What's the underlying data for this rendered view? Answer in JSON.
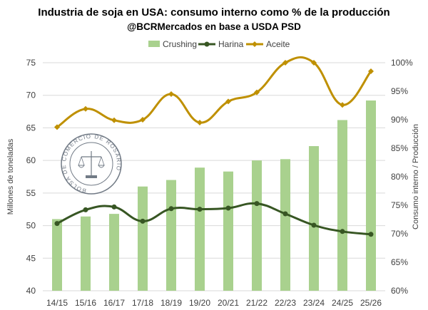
{
  "chart_data": {
    "type": "bar",
    "title": "Industria de soja en USA: consumo interno como % de la producción",
    "subtitle": "@BCRMercados en base a USDA PSD",
    "categories": [
      "14/15",
      "15/16",
      "16/17",
      "17/18",
      "18/19",
      "19/20",
      "20/21",
      "21/22",
      "22/23",
      "23/24",
      "24/25",
      "25/26"
    ],
    "series": [
      {
        "name": "Crushing",
        "type": "bar",
        "axis": "left",
        "color": "#a9d18e",
        "values": [
          51.0,
          51.4,
          51.8,
          56.0,
          57.0,
          58.9,
          58.3,
          60.0,
          60.2,
          62.2,
          66.2,
          69.2
        ]
      },
      {
        "name": "Harina",
        "type": "line",
        "axis": "right",
        "color": "#375623",
        "values": [
          71.8,
          74.2,
          74.7,
          72.2,
          74.4,
          74.3,
          74.5,
          75.3,
          73.5,
          71.5,
          70.4,
          69.9
        ]
      },
      {
        "name": "Aceite",
        "type": "line",
        "axis": "right",
        "color": "#bf9000",
        "values": [
          88.7,
          91.9,
          89.9,
          90.0,
          94.5,
          89.5,
          93.2,
          94.8,
          100.0,
          100.0,
          92.6,
          98.5
        ]
      }
    ],
    "ylabel": "Millones de toneladas",
    "y2label": "Consumo interno / Producción",
    "ylim": [
      40,
      75
    ],
    "yticks": [
      "40",
      "45",
      "50",
      "55",
      "60",
      "65",
      "70",
      "75"
    ],
    "y2lim": [
      60,
      100
    ],
    "y2ticks": [
      "60%",
      "65%",
      "70%",
      "75%",
      "80%",
      "85%",
      "90%",
      "95%",
      "100%"
    ],
    "grid": true,
    "legend_position": "top",
    "watermark": "BOLSA DE COMERCIO DE ROSARIO"
  }
}
